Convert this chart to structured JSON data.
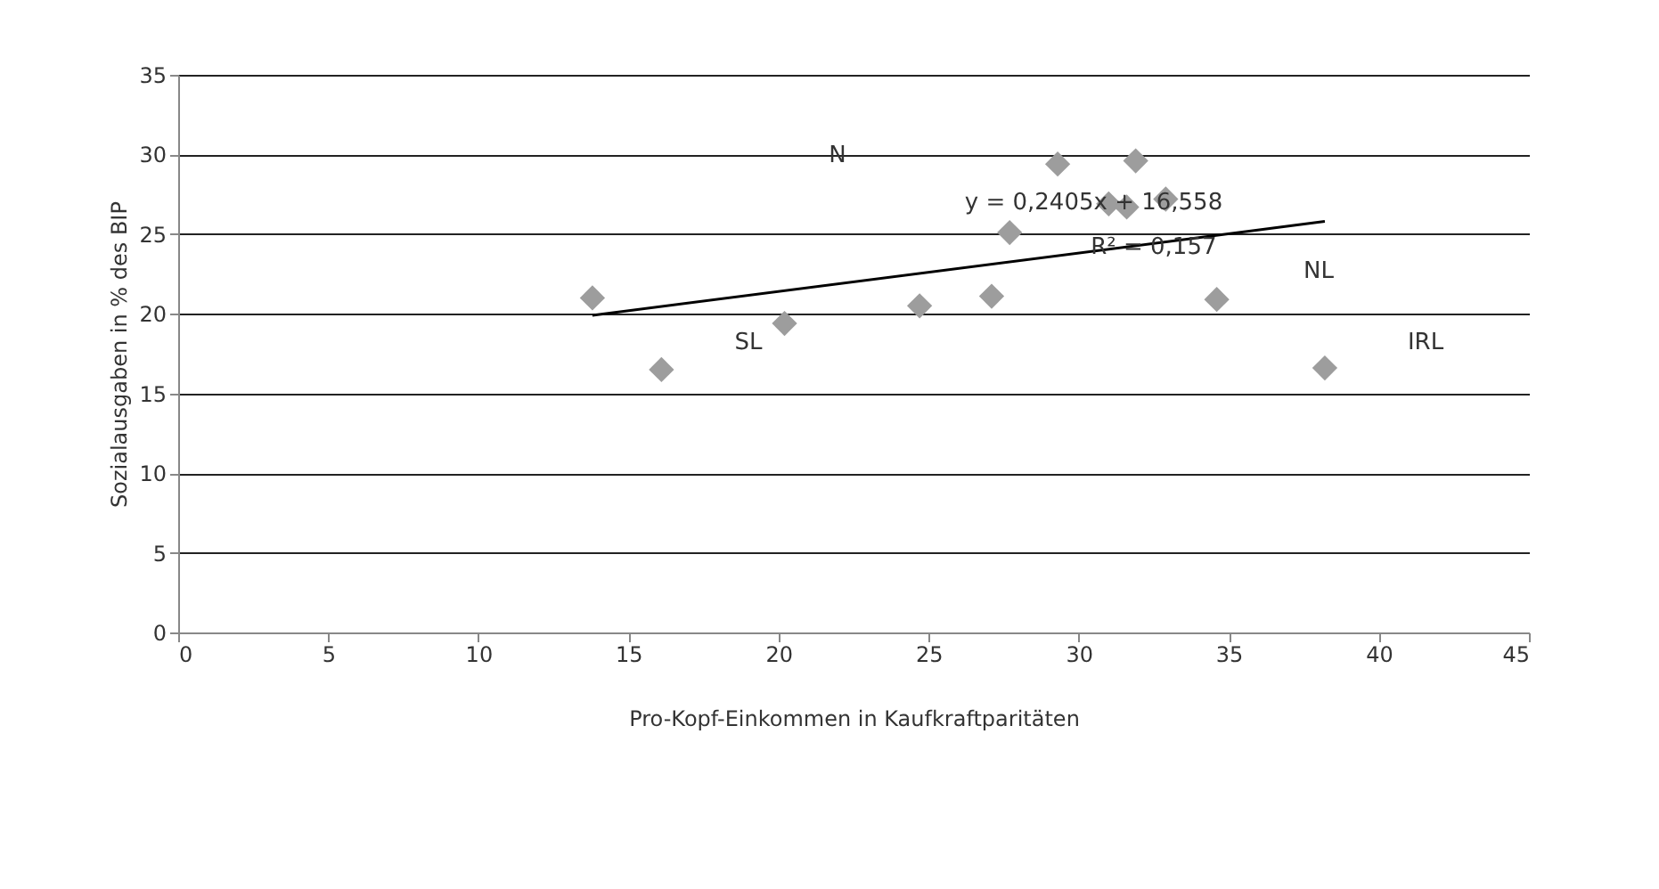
{
  "chart_data": {
    "type": "scatter",
    "xlabel": "Pro-Kopf-Einkommen in Kaufkraftparitäten",
    "ylabel": "Sozialausgaben in % des BIP",
    "series": [
      {
        "type": "scatter",
        "color": "#9d9d9d",
        "marker": "diamond",
        "x": [
          13.8,
          16.1,
          20.2,
          24.7,
          27.1,
          27.7,
          29.3,
          31.0,
          31.6,
          31.9,
          32.9,
          34.6,
          38.2
        ],
        "values": [
          21.0,
          16.5,
          19.4,
          20.5,
          21.1,
          25.1,
          29.4,
          26.9,
          26.7,
          29.6,
          27.2,
          20.9,
          16.6
        ]
      },
      {
        "type": "line",
        "color": "#000000",
        "marker": "none",
        "line_style": "solid",
        "x": [
          13.8,
          38.2
        ],
        "values": [
          19.9,
          25.8
        ]
      }
    ],
    "annotations": [
      "N",
      "SL",
      "NL",
      "IRL",
      {
        "text": "y = 0,2405x + 16,558",
        "x": 30.5,
        "y": 27.0
      },
      {
        "text": "R² = 0,157",
        "x": 32.5,
        "y": 24.2
      }
    ],
    "xlim": [
      0,
      45
    ],
    "xticks": [
      0,
      5,
      10,
      15,
      20,
      25,
      30,
      35,
      40,
      45
    ],
    "ylim": [
      0,
      35
    ],
    "yticks": [
      0,
      5,
      10,
      15,
      20,
      25,
      30,
      35
    ],
    "grid": "y"
  }
}
